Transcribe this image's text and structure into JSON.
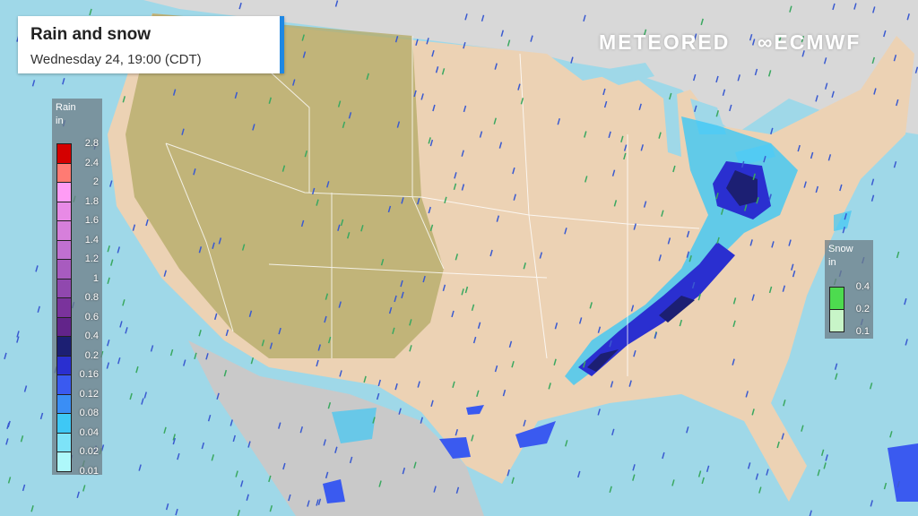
{
  "header": {
    "title": "Rain and snow",
    "subtitle": "Wednesday 24, 19:00 (CDT)"
  },
  "logos": {
    "meteored": "METEORED",
    "ecmwf": "ECMWF"
  },
  "rain_legend": {
    "title": "Rain",
    "unit": "in",
    "labels": [
      "2.8",
      "2.4",
      "2",
      "1.8",
      "1.6",
      "1.4",
      "1.2",
      "1",
      "0.8",
      "0.6",
      "0.4",
      "0.2",
      "0.16",
      "0.12",
      "0.08",
      "0.04",
      "0.02",
      "0.01"
    ],
    "colors": [
      "#d40000",
      "#ff7b73",
      "#ff9cf5",
      "#e88ae6",
      "#d67fdb",
      "#c070d0",
      "#a85bbf",
      "#9048ae",
      "#7a339c",
      "#62248a",
      "#1c1f73",
      "#2a2fd0",
      "#3a5af0",
      "#3a8ef5",
      "#3ec8f5",
      "#7de3f8",
      "#aef8fa"
    ]
  },
  "snow_legend": {
    "title": "Snow",
    "unit": "in",
    "labels": [
      "0.4",
      "0.2",
      "0.1"
    ],
    "colors": [
      "#4ddb4f",
      "#c8f5c8"
    ]
  },
  "colors": {
    "ocean": "#9fd8e8",
    "land": "#ecd2b4",
    "terrain": "#b7ad6a",
    "title_accent": "#1e88e5"
  }
}
